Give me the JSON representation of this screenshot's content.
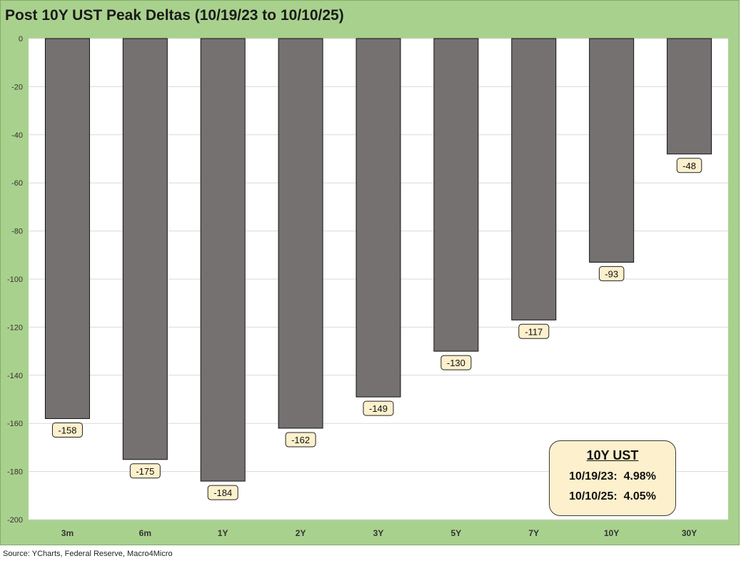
{
  "title": "Post 10Y UST Peak Deltas (10/19/23 to 10/10/25)",
  "source": "Source: YCharts, Federal Reserve, Macro4Micro",
  "info_box": {
    "title": "10Y UST",
    "row1": "10/19/23:  4.98%",
    "row2": "10/10/25:  4.05%"
  },
  "colors": {
    "background": "#a9d18e",
    "plot": "#ffffff",
    "bar": "#767171",
    "label_box": "#fdf0cc"
  },
  "chart_data": {
    "type": "bar",
    "title": "Post 10Y UST Peak Deltas (10/19/23 to 10/10/25)",
    "xlabel": "",
    "ylabel": "",
    "categories": [
      "3m",
      "6m",
      "1Y",
      "2Y",
      "3Y",
      "5Y",
      "7Y",
      "10Y",
      "30Y"
    ],
    "values": [
      -158,
      -175,
      -184,
      -162,
      -149,
      -130,
      -117,
      -93,
      -48
    ],
    "ylim": [
      -200,
      0
    ],
    "yticks": [
      0,
      -20,
      -40,
      -60,
      -80,
      -100,
      -120,
      -140,
      -160,
      -180,
      -200
    ],
    "grid": true,
    "data_labels": true
  }
}
